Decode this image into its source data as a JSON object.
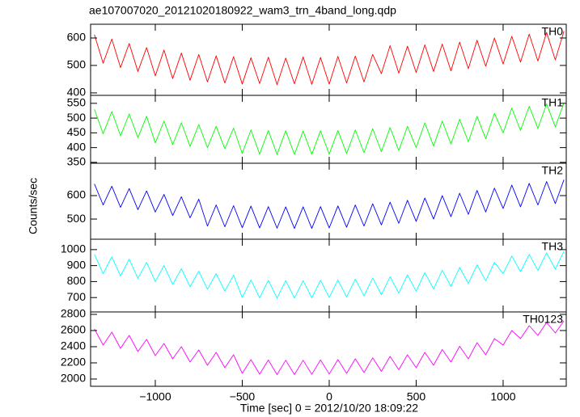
{
  "title": "ae107007020_20121020180922_wam3_trn_4band_long.qdp",
  "ylabel": "Counts/sec",
  "xlabel": "Time [sec] 0 = 2012/10/20 18:09:22",
  "chart_data": [
    {
      "type": "line",
      "xlim": [
        -1372,
        1363
      ],
      "xticks": [
        -1000,
        -500,
        0,
        500,
        1000
      ],
      "ylim": [
        391,
        650
      ],
      "yticks": [
        400,
        500,
        600
      ],
      "x": [
        -1350,
        -1300,
        -1250,
        -1200,
        -1150,
        -1100,
        -1050,
        -1000,
        -950,
        -900,
        -850,
        -800,
        -750,
        -700,
        -650,
        -600,
        -550,
        -500,
        -450,
        -400,
        -350,
        -300,
        -250,
        -200,
        -150,
        -100,
        -50,
        0,
        50,
        100,
        150,
        200,
        250,
        300,
        350,
        400,
        450,
        500,
        550,
        600,
        650,
        700,
        750,
        800,
        850,
        900,
        950,
        1000,
        1050,
        1100,
        1150,
        1200,
        1250,
        1300,
        1350
      ],
      "series": [
        {
          "name": "TH0",
          "color": "#ff0000",
          "values": [
            612,
            508,
            596,
            492,
            580,
            478,
            565,
            462,
            556,
            452,
            545,
            446,
            540,
            440,
            535,
            436,
            532,
            432,
            528,
            434,
            530,
            430,
            527,
            433,
            531,
            431,
            529,
            432,
            533,
            436,
            534,
            440,
            540,
            470,
            572,
            472,
            570,
            474,
            575,
            478,
            578,
            480,
            585,
            488,
            592,
            497,
            600,
            505,
            606,
            512,
            614,
            516,
            620,
            520,
            625
          ]
        }
      ]
    },
    {
      "type": "line",
      "xlim": [
        -1372,
        1363
      ],
      "xticks": [
        -1000,
        -500,
        0,
        500,
        1000
      ],
      "ylim": [
        347,
        577
      ],
      "yticks": [
        350,
        400,
        450,
        500,
        550
      ],
      "x": [
        -1350,
        -1300,
        -1250,
        -1200,
        -1150,
        -1100,
        -1050,
        -1000,
        -950,
        -900,
        -850,
        -800,
        -750,
        -700,
        -650,
        -600,
        -550,
        -500,
        -450,
        -400,
        -350,
        -300,
        -250,
        -200,
        -150,
        -100,
        -50,
        0,
        50,
        100,
        150,
        200,
        250,
        300,
        350,
        400,
        450,
        500,
        550,
        600,
        650,
        700,
        750,
        800,
        850,
        900,
        950,
        1000,
        1050,
        1100,
        1150,
        1200,
        1250,
        1300,
        1350
      ],
      "series": [
        {
          "name": "TH1",
          "color": "#00ff00",
          "values": [
            530,
            447,
            522,
            440,
            514,
            434,
            506,
            416,
            490,
            410,
            484,
            404,
            478,
            400,
            472,
            396,
            466,
            380,
            460,
            378,
            458,
            377,
            457,
            377,
            456,
            377,
            457,
            378,
            458,
            380,
            460,
            383,
            464,
            386,
            468,
            390,
            472,
            400,
            484,
            405,
            490,
            412,
            496,
            420,
            506,
            430,
            516,
            450,
            534,
            458,
            540,
            465,
            548,
            470,
            552
          ]
        }
      ]
    },
    {
      "type": "line",
      "xlim": [
        -1372,
        1363
      ],
      "xticks": [
        -1000,
        -500,
        0,
        500,
        1000
      ],
      "ylim": [
        414,
        738
      ],
      "yticks": [
        500,
        600
      ],
      "x": [
        -1350,
        -1300,
        -1250,
        -1200,
        -1150,
        -1100,
        -1050,
        -1000,
        -950,
        -900,
        -850,
        -800,
        -750,
        -700,
        -650,
        -600,
        -550,
        -500,
        -450,
        -400,
        -350,
        -300,
        -250,
        -200,
        -150,
        -100,
        -50,
        0,
        50,
        100,
        150,
        200,
        250,
        300,
        350,
        400,
        450,
        500,
        550,
        600,
        650,
        700,
        750,
        800,
        850,
        900,
        950,
        1000,
        1050,
        1100,
        1150,
        1200,
        1250,
        1300,
        1350
      ],
      "series": [
        {
          "name": "TH2",
          "color": "#0000ff",
          "values": [
            650,
            560,
            640,
            550,
            630,
            540,
            620,
            530,
            605,
            515,
            595,
            505,
            585,
            470,
            560,
            467,
            557,
            463,
            555,
            462,
            553,
            461,
            552,
            460,
            552,
            460,
            553,
            462,
            556,
            465,
            560,
            470,
            565,
            475,
            572,
            482,
            580,
            490,
            590,
            500,
            600,
            510,
            610,
            520,
            622,
            530,
            632,
            545,
            645,
            552,
            652,
            560,
            660,
            566,
            668
          ]
        }
      ]
    },
    {
      "type": "line",
      "xlim": [
        -1372,
        1363
      ],
      "xticks": [
        -1000,
        -500,
        0,
        500,
        1000
      ],
      "ylim": [
        610,
        1065
      ],
      "yticks": [
        700,
        800,
        900,
        1000
      ],
      "x": [
        -1350,
        -1300,
        -1250,
        -1200,
        -1150,
        -1100,
        -1050,
        -1000,
        -950,
        -900,
        -850,
        -800,
        -750,
        -700,
        -650,
        -600,
        -550,
        -500,
        -450,
        -400,
        -350,
        -300,
        -250,
        -200,
        -150,
        -100,
        -50,
        0,
        50,
        100,
        150,
        200,
        250,
        300,
        350,
        400,
        450,
        500,
        550,
        600,
        650,
        700,
        750,
        800,
        850,
        900,
        950,
        1000,
        1050,
        1100,
        1150,
        1200,
        1250,
        1300,
        1350
      ],
      "series": [
        {
          "name": "TH3",
          "color": "#00ffff",
          "values": [
            970,
            850,
            955,
            835,
            940,
            820,
            920,
            800,
            900,
            782,
            880,
            768,
            865,
            752,
            850,
            740,
            840,
            700,
            810,
            698,
            808,
            697,
            806,
            697,
            806,
            698,
            808,
            700,
            810,
            704,
            815,
            710,
            822,
            718,
            830,
            728,
            842,
            740,
            856,
            754,
            870,
            770,
            888,
            788,
            905,
            805,
            920,
            850,
            960,
            862,
            970,
            870,
            980,
            878,
            990
          ]
        }
      ]
    },
    {
      "type": "line",
      "xlim": [
        -1372,
        1363
      ],
      "xticks": [
        {
          "value": -1000,
          "label": "−1000"
        },
        {
          "value": -500,
          "label": "−500"
        },
        0,
        500,
        1000
      ],
      "ylim": [
        1910,
        2830
      ],
      "yticks": [
        2000,
        2200,
        2400,
        2600,
        2800
      ],
      "x": [
        -1350,
        -1300,
        -1250,
        -1200,
        -1150,
        -1100,
        -1050,
        -1000,
        -950,
        -900,
        -850,
        -800,
        -750,
        -700,
        -650,
        -600,
        -550,
        -500,
        -450,
        -400,
        -350,
        -300,
        -250,
        -200,
        -150,
        -100,
        -50,
        0,
        50,
        100,
        150,
        200,
        250,
        300,
        350,
        400,
        450,
        500,
        550,
        600,
        650,
        700,
        750,
        800,
        850,
        900,
        950,
        1000,
        1050,
        1100,
        1150,
        1200,
        1250,
        1300,
        1350
      ],
      "series": [
        {
          "name": "TH0123",
          "color": "#ff00ff",
          "values": [
            2620,
            2420,
            2580,
            2380,
            2540,
            2340,
            2490,
            2290,
            2440,
            2250,
            2400,
            2210,
            2360,
            2170,
            2330,
            2140,
            2300,
            2070,
            2240,
            2060,
            2235,
            2055,
            2232,
            2055,
            2232,
            2058,
            2236,
            2062,
            2240,
            2070,
            2250,
            2080,
            2262,
            2095,
            2280,
            2115,
            2300,
            2140,
            2330,
            2170,
            2365,
            2210,
            2405,
            2250,
            2450,
            2300,
            2500,
            2420,
            2600,
            2500,
            2660,
            2540,
            2700,
            2570,
            2720
          ]
        }
      ]
    }
  ]
}
